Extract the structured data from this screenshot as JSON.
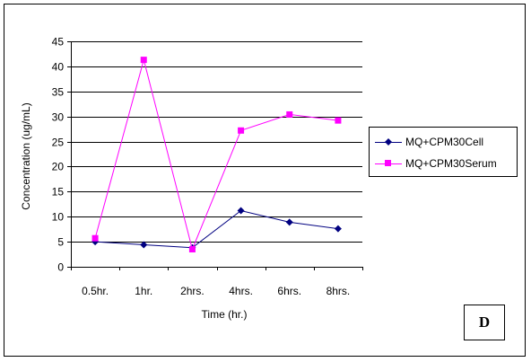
{
  "chart_data": {
    "type": "line",
    "title": "",
    "xlabel": "Time (hr.)",
    "ylabel": "Concentration (ug/mL)",
    "categories": [
      "0.5hr.",
      "1hr.",
      "2hrs.",
      "4hrs.",
      "6hrs.",
      "8hrs."
    ],
    "ylim": [
      0,
      45
    ],
    "yticks": [
      0,
      5,
      10,
      15,
      20,
      25,
      30,
      35,
      40,
      45
    ],
    "grid": "horizontal",
    "legend_position": "right",
    "series": [
      {
        "name": "MQ+CPM30Cell",
        "values": [
          5.0,
          4.4,
          3.8,
          11.2,
          8.9,
          7.6
        ],
        "color": "#000080",
        "marker": "diamond"
      },
      {
        "name": "MQ+CPM30Serum",
        "values": [
          5.7,
          41.3,
          3.5,
          27.2,
          30.4,
          29.2
        ],
        "color": "#ff00ff",
        "marker": "square"
      }
    ],
    "panel_label": "D"
  }
}
